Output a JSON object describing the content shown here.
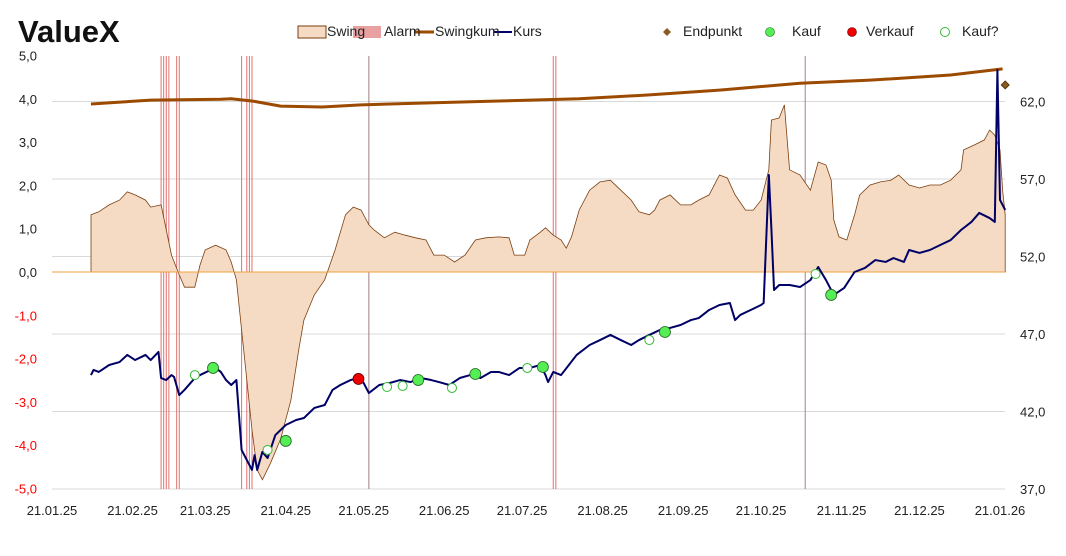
{
  "chart_data": {
    "type": "area",
    "title": "ValueX",
    "legend_position": "top-right",
    "legend": [
      "Swing",
      "Alarm",
      "Swingkum",
      "Kurs",
      "Endpunkt",
      "Kauf",
      "Verkauf",
      "Kauf?"
    ],
    "x_unit": "days since 21.01.25",
    "x_ticks": [
      {
        "day": 0,
        "label": "21.01.25"
      },
      {
        "day": 31,
        "label": "21.02.25"
      },
      {
        "day": 59,
        "label": "21.03.25"
      },
      {
        "day": 90,
        "label": "21.04.25"
      },
      {
        "day": 120,
        "label": "21.05.25"
      },
      {
        "day": 151,
        "label": "21.06.25"
      },
      {
        "day": 181,
        "label": "21.07.25"
      },
      {
        "day": 212,
        "label": "21.08.25"
      },
      {
        "day": 243,
        "label": "21.09.25"
      },
      {
        "day": 273,
        "label": "21.10.25"
      },
      {
        "day": 304,
        "label": "21.11.25"
      },
      {
        "day": 334,
        "label": "21.12.25"
      },
      {
        "day": 365,
        "label": "21.01.26"
      }
    ],
    "left_axis": {
      "range": [
        -5,
        5
      ],
      "ticks": [
        "5,0",
        "4,0",
        "3,0",
        "2,0",
        "1,0",
        "0,0",
        "-1,0",
        "-2,0",
        "-3,0",
        "-4,0",
        "-5,0"
      ],
      "negative_color": "#ff0000"
    },
    "right_axis": {
      "range": [
        37,
        62
      ],
      "ticks": [
        "62,0",
        "57,0",
        "52,0",
        "47,0",
        "42,0",
        "37,0"
      ]
    },
    "colors": {
      "swing_fill": "#f5dbc4",
      "swing_line": "#7b3f10",
      "alarm": "#e07070",
      "swingkum": "#9c4a00",
      "kurs": "#000066",
      "endpunkt": "#8b5a1e",
      "kauf": "#55ee55",
      "verkauf": "#ee0000",
      "zero": "#f0a040",
      "grid": "#d9d9d9",
      "marker_line": "#a08080"
    },
    "swing": [
      [
        15,
        0
      ],
      [
        15,
        1.32
      ],
      [
        18,
        1.39
      ],
      [
        22,
        1.55
      ],
      [
        26,
        1.66
      ],
      [
        29,
        1.85
      ],
      [
        32,
        1.78
      ],
      [
        36,
        1.66
      ],
      [
        38,
        1.5
      ],
      [
        42,
        1.55
      ],
      [
        44,
        0.97
      ],
      [
        46,
        0.39
      ],
      [
        49,
        -0.07
      ],
      [
        51,
        -0.35
      ],
      [
        55,
        -0.35
      ],
      [
        57,
        0.16
      ],
      [
        59,
        0.51
      ],
      [
        63,
        0.62
      ],
      [
        67,
        0.51
      ],
      [
        69,
        0.23
      ],
      [
        71,
        -0.18
      ],
      [
        73,
        -1.34
      ],
      [
        75,
        -2.49
      ],
      [
        77,
        -3.65
      ],
      [
        79,
        -4.57
      ],
      [
        81,
        -4.8
      ],
      [
        84,
        -4.43
      ],
      [
        88,
        -3.86
      ],
      [
        92,
        -2.96
      ],
      [
        95,
        -1.8
      ],
      [
        97,
        -1.11
      ],
      [
        101,
        -0.53
      ],
      [
        105,
        -0.18
      ],
      [
        109,
        0.51
      ],
      [
        113,
        1.32
      ],
      [
        116,
        1.5
      ],
      [
        119,
        1.43
      ],
      [
        122,
        1.09
      ],
      [
        124,
        0.97
      ],
      [
        128,
        0.79
      ],
      [
        132,
        0.92
      ],
      [
        136,
        0.85
      ],
      [
        140,
        0.79
      ],
      [
        144,
        0.74
      ],
      [
        147,
        0.39
      ],
      [
        151,
        0.39
      ],
      [
        155,
        0.23
      ],
      [
        159,
        0.39
      ],
      [
        163,
        0.74
      ],
      [
        167,
        0.79
      ],
      [
        172,
        0.81
      ],
      [
        176,
        0.79
      ],
      [
        178,
        0.39
      ],
      [
        182,
        0.39
      ],
      [
        184,
        0.74
      ],
      [
        188,
        0.92
      ],
      [
        190,
        1.02
      ],
      [
        193,
        0.85
      ],
      [
        196,
        0.74
      ],
      [
        198,
        0.55
      ],
      [
        200,
        0.81
      ],
      [
        203,
        1.43
      ],
      [
        207,
        1.89
      ],
      [
        211,
        2.08
      ],
      [
        215,
        2.12
      ],
      [
        219,
        1.89
      ],
      [
        223,
        1.66
      ],
      [
        226,
        1.39
      ],
      [
        230,
        1.32
      ],
      [
        232,
        1.43
      ],
      [
        234,
        1.66
      ],
      [
        238,
        1.78
      ],
      [
        242,
        1.55
      ],
      [
        246,
        1.55
      ],
      [
        249,
        1.66
      ],
      [
        253,
        1.78
      ],
      [
        257,
        2.24
      ],
      [
        260,
        2.17
      ],
      [
        263,
        1.78
      ],
      [
        267,
        1.43
      ],
      [
        270,
        1.43
      ],
      [
        273,
        1.66
      ],
      [
        276,
        2.36
      ],
      [
        277,
        3.51
      ],
      [
        280,
        3.56
      ],
      [
        282,
        3.86
      ],
      [
        284,
        2.36
      ],
      [
        288,
        2.24
      ],
      [
        292,
        1.89
      ],
      [
        295,
        2.54
      ],
      [
        298,
        2.47
      ],
      [
        300,
        2.12
      ],
      [
        301,
        1.2
      ],
      [
        303,
        0.81
      ],
      [
        306,
        0.74
      ],
      [
        309,
        1.32
      ],
      [
        311,
        1.78
      ],
      [
        315,
        2.01
      ],
      [
        319,
        2.08
      ],
      [
        323,
        2.12
      ],
      [
        326,
        2.24
      ],
      [
        330,
        2.01
      ],
      [
        334,
        1.94
      ],
      [
        338,
        2.01
      ],
      [
        342,
        2.01
      ],
      [
        346,
        2.12
      ],
      [
        350,
        2.36
      ],
      [
        351,
        2.82
      ],
      [
        355,
        2.93
      ],
      [
        359,
        3.05
      ],
      [
        361,
        3.28
      ],
      [
        363,
        3.16
      ],
      [
        365,
        2.82
      ],
      [
        366,
        1.89
      ],
      [
        367,
        1.32
      ],
      [
        367,
        0
      ]
    ],
    "swingkum": [
      [
        15,
        3.88
      ],
      [
        38,
        3.97
      ],
      [
        65,
        3.99
      ],
      [
        69,
        4.0
      ],
      [
        77,
        3.95
      ],
      [
        88,
        3.83
      ],
      [
        104,
        3.81
      ],
      [
        119,
        3.86
      ],
      [
        142,
        3.9
      ],
      [
        172,
        3.95
      ],
      [
        203,
        4.0
      ],
      [
        230,
        4.09
      ],
      [
        257,
        4.2
      ],
      [
        288,
        4.36
      ],
      [
        315,
        4.43
      ],
      [
        346,
        4.55
      ],
      [
        366,
        4.69
      ]
    ],
    "kurs": [
      [
        15,
        44.35
      ],
      [
        16,
        44.68
      ],
      [
        18,
        44.55
      ],
      [
        22,
        45.0
      ],
      [
        26,
        45.19
      ],
      [
        29,
        45.65
      ],
      [
        32,
        45.32
      ],
      [
        36,
        45.65
      ],
      [
        38,
        45.32
      ],
      [
        41,
        45.84
      ],
      [
        42,
        44.16
      ],
      [
        44,
        44.03
      ],
      [
        46,
        44.35
      ],
      [
        47,
        44.23
      ],
      [
        49,
        43.06
      ],
      [
        51,
        43.39
      ],
      [
        55,
        44.16
      ],
      [
        57,
        44.35
      ],
      [
        61,
        44.68
      ],
      [
        63,
        44.81
      ],
      [
        65,
        44.55
      ],
      [
        67,
        44.03
      ],
      [
        69,
        43.71
      ],
      [
        71,
        44.03
      ],
      [
        73,
        39.52
      ],
      [
        75,
        38.87
      ],
      [
        77,
        38.23
      ],
      [
        78,
        39.19
      ],
      [
        79,
        38.23
      ],
      [
        81,
        39.39
      ],
      [
        83,
        39.0
      ],
      [
        86,
        40.48
      ],
      [
        90,
        41.13
      ],
      [
        94,
        41.45
      ],
      [
        97,
        41.58
      ],
      [
        101,
        42.23
      ],
      [
        105,
        42.42
      ],
      [
        108,
        43.39
      ],
      [
        111,
        43.71
      ],
      [
        115,
        44.03
      ],
      [
        118,
        44.16
      ],
      [
        120,
        43.84
      ],
      [
        122,
        43.19
      ],
      [
        126,
        43.71
      ],
      [
        130,
        43.84
      ],
      [
        134,
        44.03
      ],
      [
        138,
        43.9
      ],
      [
        142,
        44.16
      ],
      [
        146,
        44.03
      ],
      [
        149,
        43.9
      ],
      [
        153,
        43.71
      ],
      [
        157,
        44.16
      ],
      [
        161,
        44.35
      ],
      [
        165,
        44.16
      ],
      [
        169,
        44.55
      ],
      [
        172,
        44.55
      ],
      [
        176,
        44.35
      ],
      [
        180,
        44.81
      ],
      [
        184,
        44.81
      ],
      [
        188,
        45.0
      ],
      [
        190,
        44.35
      ],
      [
        191,
        43.9
      ],
      [
        193,
        44.55
      ],
      [
        196,
        44.35
      ],
      [
        199,
        45.0
      ],
      [
        202,
        45.65
      ],
      [
        207,
        46.29
      ],
      [
        211,
        46.61
      ],
      [
        215,
        46.94
      ],
      [
        219,
        46.61
      ],
      [
        223,
        46.29
      ],
      [
        226,
        46.61
      ],
      [
        230,
        46.94
      ],
      [
        234,
        47.26
      ],
      [
        238,
        47.39
      ],
      [
        242,
        47.58
      ],
      [
        246,
        47.9
      ],
      [
        249,
        48.03
      ],
      [
        253,
        48.55
      ],
      [
        257,
        48.87
      ],
      [
        261,
        49.0
      ],
      [
        263,
        47.9
      ],
      [
        265,
        48.23
      ],
      [
        269,
        48.55
      ],
      [
        273,
        48.87
      ],
      [
        274,
        49.0
      ],
      [
        276,
        57.26
      ],
      [
        277,
        53.71
      ],
      [
        278,
        49.84
      ],
      [
        280,
        50.16
      ],
      [
        284,
        50.16
      ],
      [
        288,
        50.03
      ],
      [
        292,
        50.48
      ],
      [
        295,
        51.32
      ],
      [
        298,
        50.48
      ],
      [
        301,
        49.52
      ],
      [
        305,
        49.97
      ],
      [
        309,
        51.0
      ],
      [
        313,
        51.26
      ],
      [
        317,
        51.77
      ],
      [
        321,
        51.65
      ],
      [
        324,
        51.9
      ],
      [
        328,
        51.65
      ],
      [
        330,
        52.42
      ],
      [
        334,
        52.23
      ],
      [
        338,
        52.42
      ],
      [
        342,
        52.74
      ],
      [
        346,
        53.06
      ],
      [
        350,
        53.71
      ],
      [
        354,
        54.23
      ],
      [
        357,
        54.81
      ],
      [
        361,
        54.48
      ],
      [
        363,
        54.23
      ],
      [
        364,
        64.03
      ],
      [
        365,
        55.65
      ],
      [
        367,
        55.0
      ]
    ],
    "endpunkt": {
      "day": 367,
      "value": 4.32
    },
    "alarm_days": [
      42,
      43,
      44,
      45,
      48,
      49,
      73,
      75,
      76,
      77,
      193,
      194
    ],
    "marker_days": [
      122,
      290
    ],
    "kauf": [
      [
        62,
        44.81
      ],
      [
        90,
        40.1
      ],
      [
        141,
        44.03
      ],
      [
        163,
        44.42
      ],
      [
        189,
        44.87
      ],
      [
        236,
        47.13
      ],
      [
        300,
        49.52
      ]
    ],
    "verkauf": [
      [
        118,
        44.1
      ]
    ],
    "kauf_q": [
      [
        55,
        44.35
      ],
      [
        83,
        39.52
      ],
      [
        129,
        43.58
      ],
      [
        135,
        43.65
      ],
      [
        154,
        43.52
      ],
      [
        183,
        44.81
      ],
      [
        230,
        46.61
      ],
      [
        294,
        50.87
      ]
    ]
  }
}
